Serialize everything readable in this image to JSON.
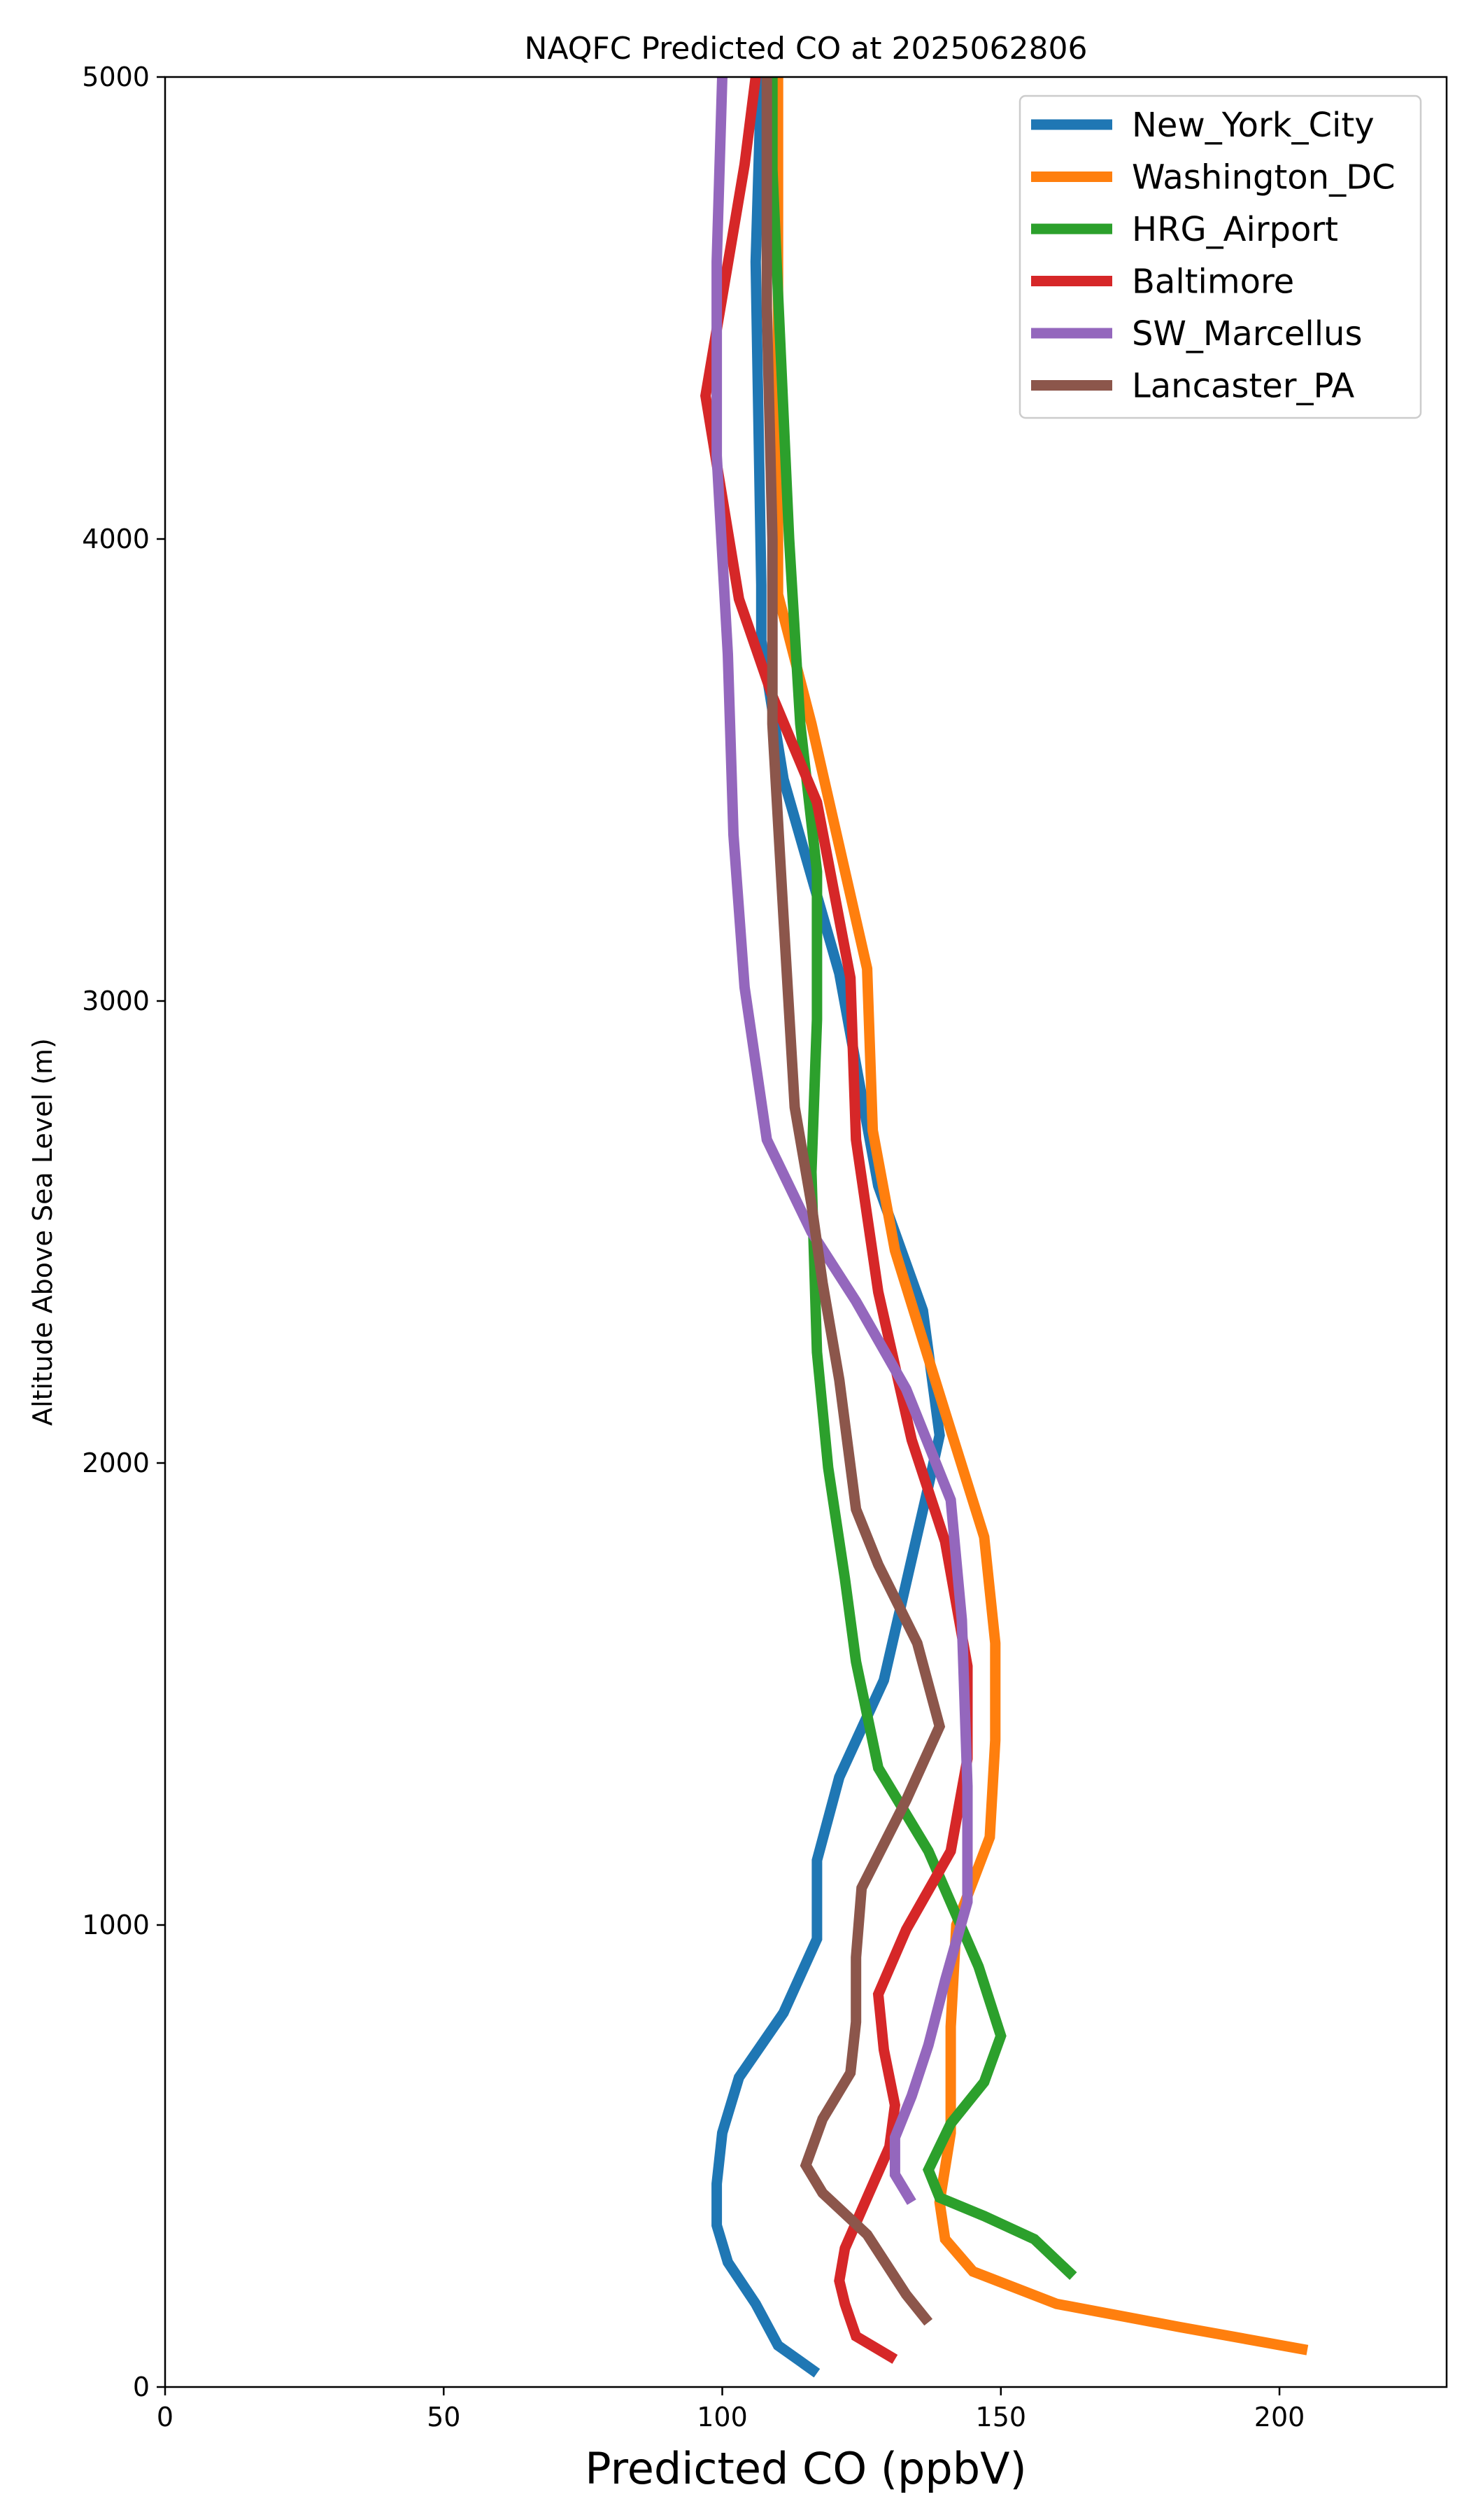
{
  "chart_data": {
    "type": "line",
    "title": "NAQFC Predicted CO at 2025062806",
    "xlabel": "Predicted CO (ppbV)",
    "ylabel": "Altitude Above Sea Level (m)",
    "xlim": [
      0,
      230
    ],
    "ylim": [
      0,
      5000
    ],
    "xticks": [
      "0",
      "50",
      "100",
      "150",
      "200"
    ],
    "yticks": [
      "0",
      "1000",
      "2000",
      "3000",
      "4000",
      "5000"
    ],
    "grid": false,
    "legend_position": "top-right",
    "series": [
      {
        "name": "New_York_City",
        "color": "#1f77b4",
        "points": [
          [
            117,
            30
          ],
          [
            110,
            90
          ],
          [
            106,
            180
          ],
          [
            101,
            270
          ],
          [
            99,
            350
          ],
          [
            99,
            440
          ],
          [
            100,
            550
          ],
          [
            103,
            670
          ],
          [
            111,
            810
          ],
          [
            117,
            970
          ],
          [
            117,
            1140
          ],
          [
            121,
            1320
          ],
          [
            129,
            1530
          ],
          [
            133,
            1740
          ],
          [
            137,
            1950
          ],
          [
            139,
            2060
          ],
          [
            136,
            2330
          ],
          [
            128,
            2600
          ],
          [
            121,
            3060
          ],
          [
            111,
            3480
          ],
          [
            107,
            3780
          ],
          [
            107,
            3900
          ],
          [
            106,
            4600
          ],
          [
            107,
            5000
          ]
        ]
      },
      {
        "name": "Washington_DC",
        "color": "#ff7f0e",
        "points": [
          [
            205,
            80
          ],
          [
            182,
            130
          ],
          [
            160,
            180
          ],
          [
            145,
            250
          ],
          [
            140,
            320
          ],
          [
            139,
            400
          ],
          [
            141,
            550
          ],
          [
            141,
            780
          ],
          [
            142,
            1000
          ],
          [
            148,
            1190
          ],
          [
            149,
            1400
          ],
          [
            149,
            1610
          ],
          [
            147,
            1840
          ],
          [
            140,
            2110
          ],
          [
            131,
            2460
          ],
          [
            127,
            2720
          ],
          [
            126,
            3070
          ],
          [
            116,
            3600
          ],
          [
            110,
            3880
          ],
          [
            110,
            5000
          ]
        ]
      },
      {
        "name": "HRG_Airport",
        "color": "#2ca02c",
        "points": [
          [
            163,
            240
          ],
          [
            156,
            320
          ],
          [
            147,
            370
          ],
          [
            139,
            410
          ],
          [
            137,
            470
          ],
          [
            141,
            570
          ],
          [
            147,
            660
          ],
          [
            150,
            760
          ],
          [
            146,
            910
          ],
          [
            137,
            1160
          ],
          [
            128,
            1340
          ],
          [
            124,
            1570
          ],
          [
            122,
            1750
          ],
          [
            119,
            1990
          ],
          [
            117,
            2240
          ],
          [
            116,
            2630
          ],
          [
            117,
            2960
          ],
          [
            117,
            3280
          ],
          [
            114,
            3600
          ],
          [
            112,
            4000
          ],
          [
            109,
            4800
          ],
          [
            109,
            5000
          ]
        ]
      },
      {
        "name": "Baltimore",
        "color": "#d62728",
        "points": [
          [
            131,
            60
          ],
          [
            124,
            110
          ],
          [
            122,
            180
          ],
          [
            121,
            230
          ],
          [
            122,
            300
          ],
          [
            126,
            410
          ],
          [
            130,
            520
          ],
          [
            131,
            610
          ],
          [
            129,
            730
          ],
          [
            128,
            850
          ],
          [
            133,
            990
          ],
          [
            141,
            1160
          ],
          [
            144,
            1360
          ],
          [
            144,
            1560
          ],
          [
            140,
            1830
          ],
          [
            134,
            2050
          ],
          [
            128,
            2370
          ],
          [
            124,
            2700
          ],
          [
            123,
            3050
          ],
          [
            117,
            3430
          ],
          [
            109,
            3660
          ],
          [
            103,
            3870
          ],
          [
            97,
            4310
          ],
          [
            104,
            4810
          ],
          [
            106,
            5000
          ]
        ]
      },
      {
        "name": "SW_Marcellus",
        "color": "#9467bd",
        "points": [
          [
            134,
            400
          ],
          [
            131,
            460
          ],
          [
            131,
            540
          ],
          [
            134,
            630
          ],
          [
            137,
            740
          ],
          [
            140,
            880
          ],
          [
            144,
            1050
          ],
          [
            144,
            1300
          ],
          [
            143,
            1660
          ],
          [
            141,
            1920
          ],
          [
            133,
            2160
          ],
          [
            124,
            2350
          ],
          [
            116,
            2500
          ],
          [
            108,
            2700
          ],
          [
            104,
            3030
          ],
          [
            102,
            3360
          ],
          [
            101,
            3750
          ],
          [
            99,
            4180
          ],
          [
            99,
            4600
          ],
          [
            100,
            5000
          ]
        ]
      },
      {
        "name": "Lancaster_PA",
        "color": "#8c564b",
        "points": [
          [
            137,
            140
          ],
          [
            133,
            200
          ],
          [
            126,
            330
          ],
          [
            118,
            420
          ],
          [
            115,
            480
          ],
          [
            118,
            580
          ],
          [
            123,
            680
          ],
          [
            124,
            790
          ],
          [
            124,
            930
          ],
          [
            125,
            1080
          ],
          [
            133,
            1270
          ],
          [
            139,
            1430
          ],
          [
            135,
            1610
          ],
          [
            128,
            1780
          ],
          [
            124,
            1900
          ],
          [
            121,
            2180
          ],
          [
            118,
            2390
          ],
          [
            116,
            2560
          ],
          [
            113,
            2770
          ],
          [
            111,
            3180
          ],
          [
            109,
            3600
          ],
          [
            109,
            4000
          ],
          [
            108,
            4500
          ],
          [
            108,
            5000
          ]
        ]
      }
    ]
  }
}
